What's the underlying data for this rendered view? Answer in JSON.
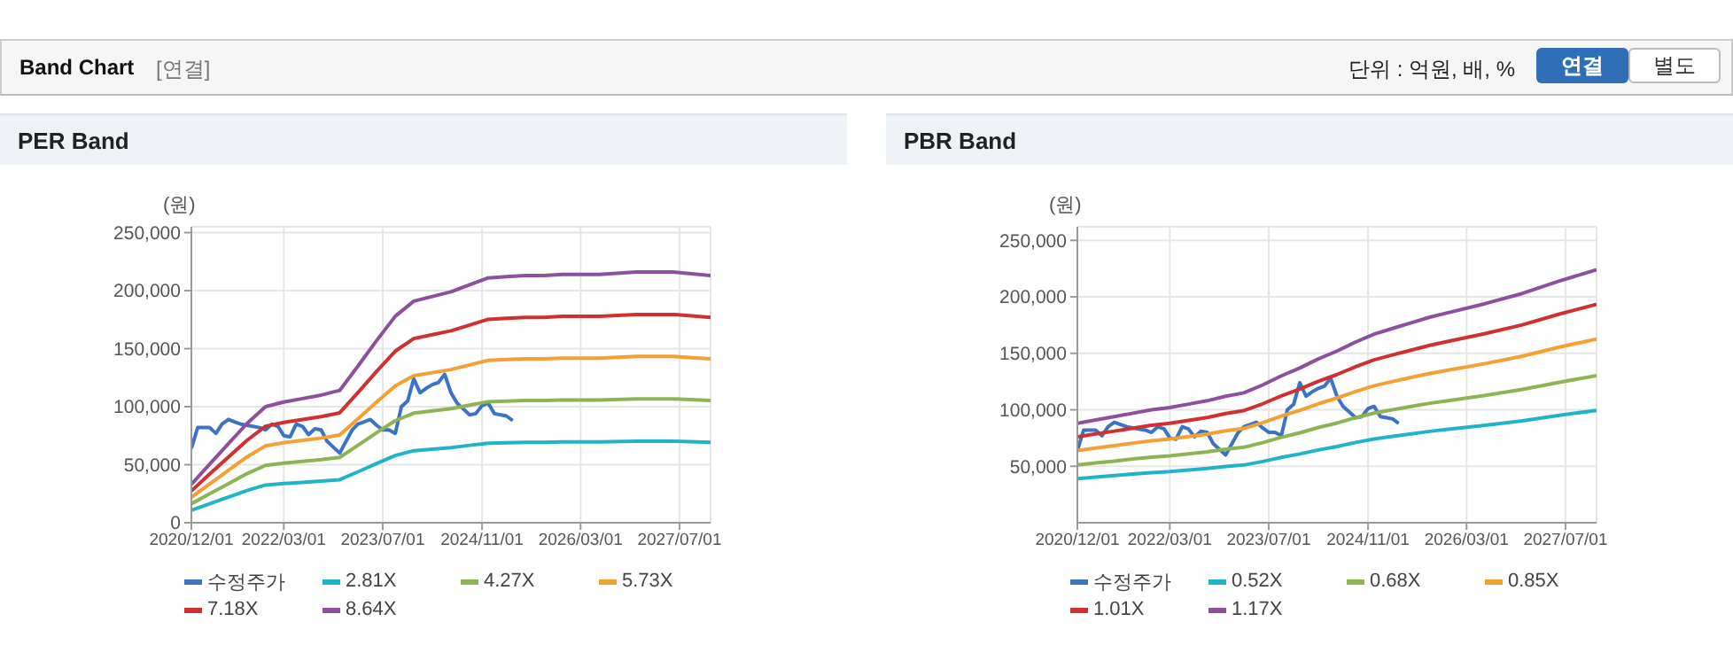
{
  "chart_data": [
    {
      "type": "line",
      "title": "PER Band",
      "ylabel": "(원)",
      "annotations": [
        "Band Chart",
        "[연결]",
        "단위 : 억원, 배, %",
        "연결",
        "별도"
      ],
      "x": [
        "2020-12-01",
        "2021-03-01",
        "2021-06-01",
        "2021-09-01",
        "2021-12-01",
        "2022-03-01",
        "2022-06-01",
        "2022-09-01",
        "2022-12-01",
        "2023-03-01",
        "2023-06-01",
        "2023-09-01",
        "2023-12-01",
        "2024-03-01",
        "2024-06-01",
        "2024-09-01",
        "2024-12-01",
        "2025-03-01",
        "2025-06-01",
        "2025-09-01",
        "2025-12-01",
        "2026-06-01",
        "2026-12-01",
        "2027-06-01",
        "2027-12-01"
      ],
      "xlim": [
        "2020-12-01",
        "2027-12-01"
      ],
      "xticks": [
        {
          "value": "2020-12-01",
          "label": "2020/12/01"
        },
        {
          "value": "2022-03-01",
          "label": "2022/03/01"
        },
        {
          "value": "2023-07-01",
          "label": "2023/07/01"
        },
        {
          "value": "2024-11-01",
          "label": "2024/11/01"
        },
        {
          "value": "2026-03-01",
          "label": "2026/03/01"
        },
        {
          "value": "2027-07-01",
          "label": "2027/07/01"
        }
      ],
      "ylim": [
        0,
        255000
      ],
      "yticks": [
        {
          "value": 0,
          "label": "0"
        },
        {
          "value": 50000,
          "label": "50,000"
        },
        {
          "value": 100000,
          "label": "100,000"
        },
        {
          "value": 150000,
          "label": "150,000"
        },
        {
          "value": 200000,
          "label": "200,000"
        },
        {
          "value": 250000,
          "label": "250,000"
        }
      ],
      "grid": true,
      "legend": "bottom",
      "series": [
        {
          "name": "수정주가",
          "color": "#3a73c8",
          "x": [
            "2020-12-01",
            "2021-01-01",
            "2021-02-01",
            "2021-03-01",
            "2021-04-01",
            "2021-05-01",
            "2021-06-01",
            "2021-07-01",
            "2021-08-01",
            "2021-09-01",
            "2021-10-01",
            "2021-11-01",
            "2021-12-01",
            "2022-01-01",
            "2022-02-01",
            "2022-03-01",
            "2022-04-01",
            "2022-05-01",
            "2022-06-01",
            "2022-07-01",
            "2022-08-01",
            "2022-09-01",
            "2022-10-01",
            "2022-11-01",
            "2022-12-01",
            "2023-01-01",
            "2023-02-01",
            "2023-03-01",
            "2023-04-01",
            "2023-05-01",
            "2023-06-01",
            "2023-07-01",
            "2023-08-01",
            "2023-09-01",
            "2023-10-01",
            "2023-11-01",
            "2023-12-01",
            "2024-01-01",
            "2024-02-01",
            "2024-03-01",
            "2024-04-01",
            "2024-05-01",
            "2024-06-01",
            "2024-07-01",
            "2024-08-01",
            "2024-09-01",
            "2024-10-01",
            "2024-11-01",
            "2024-12-01",
            "2025-01-01",
            "2025-02-01",
            "2025-03-01",
            "2025-04-01"
          ],
          "values": [
            64000,
            82000,
            82000,
            82000,
            77000,
            85000,
            89000,
            87000,
            85000,
            84000,
            83000,
            82000,
            80000,
            85000,
            83000,
            75000,
            74000,
            85000,
            83000,
            76000,
            81000,
            80000,
            70000,
            65000,
            60000,
            70000,
            80000,
            85000,
            87000,
            89000,
            84000,
            80000,
            80000,
            77000,
            100000,
            105000,
            124000,
            112000,
            116000,
            119000,
            121000,
            128000,
            112000,
            103000,
            98000,
            93000,
            94000,
            101000,
            103000,
            94000,
            93000,
            92000,
            88000
          ]
        },
        {
          "name": "2.81X",
          "color": "#1fb5c8",
          "values": [
            10700,
            16400,
            22100,
            27800,
            32500,
            33800,
            34800,
            35800,
            37100,
            43900,
            51100,
            57900,
            62100,
            63400,
            64700,
            66700,
            68600,
            68900,
            69300,
            69300,
            69600,
            69600,
            70200,
            70200,
            69300
          ]
        },
        {
          "name": "4.27X",
          "color": "#8cb452",
          "values": [
            16300,
            25000,
            33600,
            42300,
            49400,
            51400,
            52900,
            54400,
            56300,
            66700,
            77600,
            88000,
            94400,
            96400,
            98300,
            101300,
            104300,
            104800,
            105300,
            105300,
            105800,
            105800,
            106700,
            106700,
            105300
          ]
        },
        {
          "name": "5.73X",
          "color": "#f5a030",
          "values": [
            21900,
            33500,
            45100,
            56700,
            66300,
            69000,
            71000,
            73000,
            75600,
            89500,
            104100,
            118000,
            126700,
            129300,
            132000,
            136000,
            139900,
            140600,
            141300,
            141300,
            141900,
            141900,
            143300,
            143300,
            141300
          ]
        },
        {
          "name": "7.18X",
          "color": "#d03030",
          "values": [
            27400,
            42000,
            56500,
            71000,
            83100,
            86400,
            88900,
            91400,
            94700,
            112200,
            130500,
            147900,
            158700,
            162000,
            165400,
            170400,
            175300,
            176200,
            177000,
            177000,
            177800,
            177800,
            179500,
            179500,
            177000
          ]
        },
        {
          "name": "8.64X",
          "color": "#8e4f9f",
          "values": [
            33000,
            50500,
            68000,
            85500,
            100000,
            104000,
            107000,
            110000,
            114000,
            135000,
            157000,
            178000,
            191000,
            195000,
            199000,
            205000,
            211000,
            212000,
            213000,
            213000,
            214000,
            214000,
            216000,
            216000,
            213000
          ]
        }
      ]
    },
    {
      "type": "line",
      "title": "PBR Band",
      "ylabel": "(원)",
      "x": [
        "2020-12-01",
        "2021-03-01",
        "2021-06-01",
        "2021-09-01",
        "2021-12-01",
        "2022-03-01",
        "2022-06-01",
        "2022-09-01",
        "2022-12-01",
        "2023-03-01",
        "2023-06-01",
        "2023-09-01",
        "2023-12-01",
        "2024-03-01",
        "2024-06-01",
        "2024-09-01",
        "2024-12-01",
        "2025-03-01",
        "2025-06-01",
        "2025-09-01",
        "2025-12-01",
        "2026-06-01",
        "2026-12-01",
        "2027-06-01",
        "2027-12-01"
      ],
      "xlim": [
        "2020-12-01",
        "2027-12-01"
      ],
      "xticks": [
        {
          "value": "2020-12-01",
          "label": "2020/12/01"
        },
        {
          "value": "2022-03-01",
          "label": "2022/03/01"
        },
        {
          "value": "2023-07-01",
          "label": "2023/07/01"
        },
        {
          "value": "2024-11-01",
          "label": "2024/11/01"
        },
        {
          "value": "2026-03-01",
          "label": "2026/03/01"
        },
        {
          "value": "2027-07-01",
          "label": "2027/07/01"
        }
      ],
      "ylim": [
        0,
        262000
      ],
      "yticks": [
        {
          "value": 50000,
          "label": "50,000"
        },
        {
          "value": 100000,
          "label": "100,000"
        },
        {
          "value": 150000,
          "label": "150,000"
        },
        {
          "value": 200000,
          "label": "200,000"
        },
        {
          "value": 250000,
          "label": "250,000"
        }
      ],
      "grid": true,
      "legend": "bottom",
      "series": [
        {
          "name": "수정주가",
          "color": "#3a73c8",
          "x": [
            "2020-12-01",
            "2021-01-01",
            "2021-02-01",
            "2021-03-01",
            "2021-04-01",
            "2021-05-01",
            "2021-06-01",
            "2021-07-01",
            "2021-08-01",
            "2021-09-01",
            "2021-10-01",
            "2021-11-01",
            "2021-12-01",
            "2022-01-01",
            "2022-02-01",
            "2022-03-01",
            "2022-04-01",
            "2022-05-01",
            "2022-06-01",
            "2022-07-01",
            "2022-08-01",
            "2022-09-01",
            "2022-10-01",
            "2022-11-01",
            "2022-12-01",
            "2023-01-01",
            "2023-02-01",
            "2023-03-01",
            "2023-04-01",
            "2023-05-01",
            "2023-06-01",
            "2023-07-01",
            "2023-08-01",
            "2023-09-01",
            "2023-10-01",
            "2023-11-01",
            "2023-12-01",
            "2024-01-01",
            "2024-02-01",
            "2024-03-01",
            "2024-04-01",
            "2024-05-01",
            "2024-06-01",
            "2024-07-01",
            "2024-08-01",
            "2024-09-01",
            "2024-10-01",
            "2024-11-01",
            "2024-12-01",
            "2025-01-01",
            "2025-02-01",
            "2025-03-01",
            "2025-04-01"
          ],
          "values": [
            64000,
            82000,
            82000,
            82000,
            77000,
            85000,
            89000,
            87000,
            85000,
            84000,
            83000,
            82000,
            80000,
            85000,
            83000,
            75000,
            74000,
            85000,
            83000,
            76000,
            81000,
            80000,
            70000,
            65000,
            60000,
            70000,
            80000,
            85000,
            87000,
            89000,
            84000,
            80000,
            80000,
            77000,
            100000,
            105000,
            124000,
            112000,
            116000,
            119000,
            121000,
            128000,
            112000,
            103000,
            98000,
            93000,
            94000,
            101000,
            103000,
            94000,
            93000,
            92000,
            88000
          ]
        },
        {
          "name": "0.52X",
          "color": "#1fb5c8",
          "values": [
            39100,
            40400,
            41800,
            43100,
            44400,
            45300,
            46700,
            48000,
            49800,
            51100,
            54200,
            57800,
            60900,
            64400,
            67500,
            71100,
            74200,
            76400,
            78700,
            80900,
            82700,
            86200,
            90200,
            95100,
            99500
          ]
        },
        {
          "name": "0.68X",
          "color": "#8cb452",
          "values": [
            51100,
            52900,
            54600,
            56400,
            58100,
            59300,
            61000,
            62800,
            65100,
            66800,
            70900,
            75600,
            79600,
            84300,
            88300,
            93000,
            97100,
            100000,
            102900,
            105800,
            108100,
            112800,
            118000,
            124400,
            130200
          ]
        },
        {
          "name": "0.85X",
          "color": "#f5a030",
          "values": [
            63900,
            66100,
            68300,
            70500,
            72600,
            74100,
            76300,
            78500,
            81400,
            83500,
            88600,
            94400,
            99500,
            105300,
            110400,
            116200,
            121300,
            125000,
            128600,
            132200,
            135100,
            140900,
            147500,
            155500,
            162700
          ]
        },
        {
          "name": "1.01X",
          "color": "#d03030",
          "values": [
            76000,
            78600,
            81100,
            83700,
            86300,
            88000,
            90600,
            93200,
            96700,
            99300,
            105300,
            112200,
            118300,
            125200,
            131200,
            138100,
            144200,
            148500,
            152800,
            157100,
            160600,
            167500,
            175200,
            184700,
            193400
          ]
        },
        {
          "name": "1.17X",
          "color": "#8e4f9f",
          "values": [
            88000,
            91000,
            94000,
            97000,
            100000,
            102000,
            105000,
            108000,
            112000,
            115000,
            122000,
            130000,
            137000,
            145000,
            152000,
            160000,
            167000,
            172000,
            177000,
            182000,
            186000,
            194000,
            203000,
            214000,
            224000
          ]
        }
      ]
    }
  ]
}
